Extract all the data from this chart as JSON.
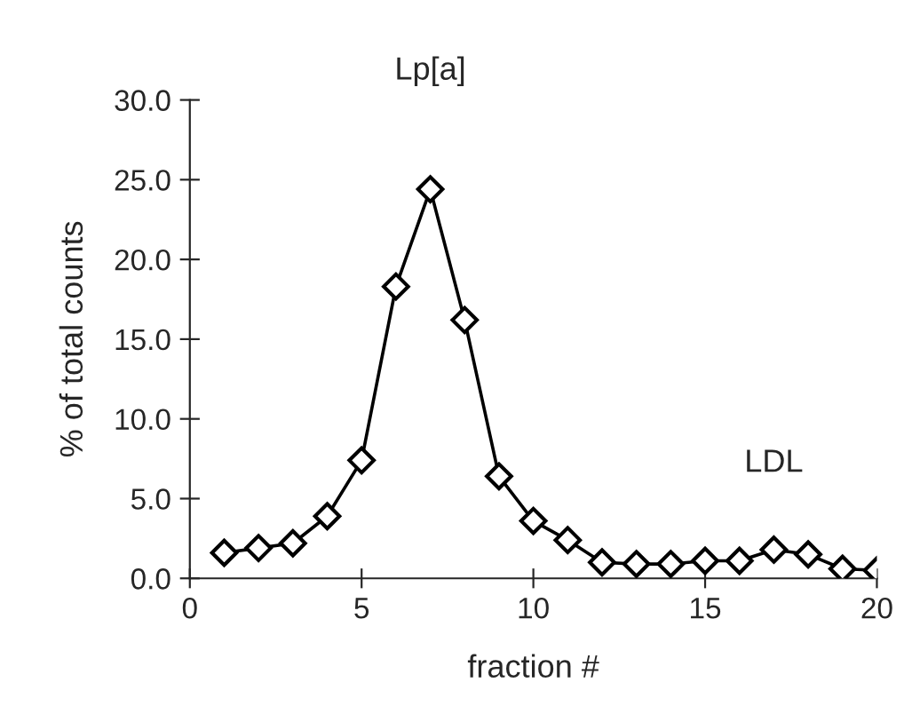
{
  "chart_data": {
    "type": "line",
    "xlabel": "fraction #",
    "ylabel": "% of total counts",
    "x": [
      1,
      2,
      3,
      4,
      5,
      6,
      7,
      8,
      9,
      10,
      11,
      12,
      13,
      14,
      15,
      16,
      17,
      18,
      19,
      20
    ],
    "series": [
      {
        "color": "#000000",
        "values": [
          1.6,
          1.9,
          2.2,
          3.9,
          7.4,
          18.3,
          24.4,
          16.2,
          6.4,
          3.6,
          2.4,
          1.0,
          0.9,
          0.9,
          1.1,
          1.1,
          1.8,
          1.5,
          0.6,
          0.5
        ]
      }
    ],
    "marker": "diamond",
    "line_style": "solid",
    "grid": false,
    "legend": false,
    "xlim": [
      0,
      20
    ],
    "xticks": [
      0,
      5,
      10,
      15,
      20
    ],
    "ylim": [
      0,
      30
    ],
    "yticks": [
      {
        "value": 0,
        "label": "0.0"
      },
      {
        "value": 5,
        "label": "5.0"
      },
      {
        "value": 10,
        "label": "10.0"
      },
      {
        "value": 15,
        "label": "15.0"
      },
      {
        "value": 20,
        "label": "20.0"
      },
      {
        "value": 25,
        "label": "25.0"
      },
      {
        "value": 30,
        "label": "30.0"
      }
    ],
    "annotations": [
      "Lp[a]",
      "LDL"
    ]
  }
}
